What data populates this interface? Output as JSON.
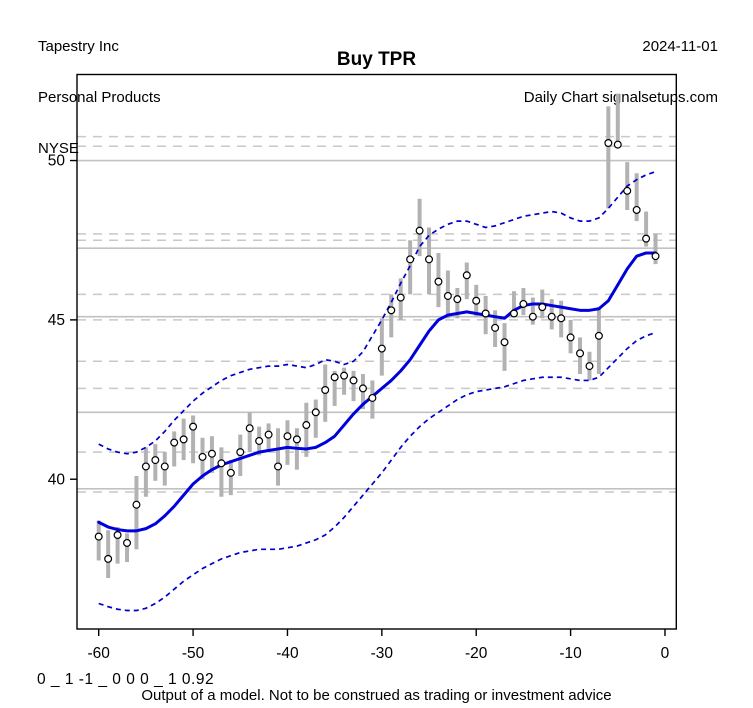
{
  "header": {
    "company": "Tapestry Inc",
    "industry": "Personal Products",
    "exchange": "NYSE",
    "date": "2024-11-01",
    "source": "Daily Chart signalsetups.com"
  },
  "title": "Buy TPR",
  "footer": {
    "model_output": "0 _ 1 -1 _ 0 0 0 _ 1 0.92",
    "disclaimer": "Output of a model. Not to be construed as trading or investment advice"
  },
  "colors": {
    "line_blue": "#0000dd",
    "band_blue": "#0000cc",
    "bar_gray": "#b2b2b2",
    "grid_solid_gray": "#c2c2c2",
    "grid_dashed_gray": "#c8c8c8",
    "marker_fill": "#ffffff",
    "marker_stroke": "#000000",
    "axis_black": "#000000"
  },
  "chart_data": {
    "type": "line",
    "title": "Buy TPR",
    "xlabel": "",
    "ylabel": "",
    "legend": "none",
    "grid": "horizontal support/resistance levels, solid and dashed gray",
    "x_ticks": [
      -60,
      -50,
      -40,
      -30,
      -20,
      -10,
      0
    ],
    "y_ticks": [
      40,
      45,
      50
    ],
    "xlim": [
      -62.3,
      1.2
    ],
    "ylim": [
      35.3,
      52.7
    ],
    "hlines_solid": [
      50.0,
      47.25,
      45.1,
      42.1,
      39.7
    ],
    "hlines_dashed": [
      50.75,
      50.45,
      47.7,
      47.5,
      45.8,
      45.0,
      43.7,
      42.85,
      40.85,
      39.6
    ],
    "x": [
      -60,
      -59,
      -58,
      -57,
      -56,
      -55,
      -54,
      -53,
      -52,
      -51,
      -50,
      -49,
      -48,
      -47,
      -46,
      -45,
      -44,
      -43,
      -42,
      -41,
      -40,
      -39,
      -38,
      -37,
      -36,
      -35,
      -34,
      -33,
      -32,
      -31,
      -30,
      -29,
      -28,
      -27,
      -26,
      -25,
      -24,
      -23,
      -22,
      -21,
      -20,
      -19,
      -18,
      -17,
      -16,
      -15,
      -14,
      -13,
      -12,
      -11,
      -10,
      -9,
      -8,
      -7,
      -6,
      -5,
      -4,
      -3,
      -2,
      -1
    ],
    "series": [
      {
        "name": "close",
        "style": "open-circle-marker",
        "values": [
          38.2,
          37.5,
          38.25,
          38.0,
          39.2,
          40.4,
          40.6,
          40.4,
          41.15,
          41.25,
          41.65,
          40.7,
          40.8,
          40.5,
          40.2,
          40.85,
          41.6,
          41.2,
          41.4,
          40.4,
          41.35,
          41.25,
          41.7,
          42.1,
          42.8,
          43.2,
          43.25,
          43.1,
          42.85,
          42.55,
          44.1,
          45.3,
          45.7,
          46.9,
          47.8,
          46.9,
          46.2,
          45.75,
          45.65,
          46.4,
          45.6,
          45.2,
          44.75,
          44.3,
          45.2,
          45.5,
          45.1,
          45.4,
          45.1,
          45.05,
          44.45,
          43.95,
          43.55,
          44.5,
          50.55,
          50.5,
          49.05,
          48.45,
          47.55,
          47.0
        ]
      },
      {
        "name": "high",
        "style": "gray-range-bar-top",
        "values": [
          38.7,
          38.4,
          38.5,
          38.3,
          40.1,
          41.0,
          41.1,
          40.85,
          41.5,
          41.9,
          42.0,
          41.3,
          41.35,
          41.0,
          40.6,
          41.4,
          42.1,
          41.65,
          41.75,
          41.6,
          41.85,
          41.6,
          42.4,
          42.5,
          43.6,
          43.4,
          43.5,
          43.4,
          43.3,
          43.1,
          45.05,
          45.8,
          46.3,
          47.5,
          48.8,
          47.9,
          47.1,
          46.55,
          46.0,
          46.8,
          46.1,
          45.75,
          45.3,
          44.9,
          45.9,
          46.0,
          45.7,
          45.95,
          45.65,
          45.6,
          45.0,
          44.45,
          44.0,
          45.4,
          51.7,
          52.1,
          49.95,
          49.6,
          48.4,
          47.7
        ]
      },
      {
        "name": "low",
        "style": "gray-range-bar-bottom",
        "values": [
          37.45,
          36.9,
          37.35,
          37.4,
          37.8,
          39.45,
          39.95,
          39.8,
          40.4,
          40.6,
          40.5,
          40.0,
          40.2,
          39.45,
          39.5,
          40.1,
          40.85,
          40.75,
          40.85,
          39.8,
          40.45,
          40.3,
          40.7,
          41.3,
          41.8,
          42.3,
          42.65,
          42.45,
          42.2,
          41.9,
          43.25,
          44.45,
          45.0,
          45.8,
          47.0,
          45.8,
          45.4,
          45.05,
          45.05,
          45.65,
          45.1,
          44.55,
          44.15,
          43.4,
          45.1,
          45.15,
          44.85,
          45.05,
          44.7,
          44.45,
          43.95,
          43.3,
          43.1,
          43.3,
          48.5,
          50.4,
          48.45,
          48.1,
          47.3,
          46.75
        ]
      },
      {
        "name": "moving_average",
        "style": "solid-blue-line",
        "values": [
          38.65,
          38.5,
          38.42,
          38.38,
          38.38,
          38.45,
          38.6,
          38.85,
          39.15,
          39.5,
          39.85,
          40.1,
          40.3,
          40.45,
          40.55,
          40.65,
          40.75,
          40.85,
          40.9,
          40.95,
          41.0,
          40.97,
          40.95,
          41.0,
          41.15,
          41.35,
          41.7,
          42.05,
          42.35,
          42.6,
          42.85,
          43.1,
          43.4,
          43.75,
          44.2,
          44.65,
          45.0,
          45.15,
          45.2,
          45.25,
          45.2,
          45.15,
          45.1,
          45.05,
          45.3,
          45.45,
          45.5,
          45.5,
          45.45,
          45.4,
          45.35,
          45.3,
          45.3,
          45.35,
          45.6,
          46.1,
          46.6,
          47.0,
          47.1,
          47.1
        ]
      },
      {
        "name": "upper_band",
        "style": "dashed-blue-line",
        "values": [
          41.1,
          40.95,
          40.85,
          40.8,
          40.85,
          41.0,
          41.2,
          41.5,
          41.85,
          42.15,
          42.45,
          42.7,
          42.9,
          43.1,
          43.25,
          43.35,
          43.45,
          43.5,
          43.55,
          43.55,
          43.6,
          43.55,
          43.5,
          43.6,
          43.75,
          43.7,
          43.6,
          43.7,
          44.0,
          44.5,
          45.0,
          45.55,
          46.15,
          46.7,
          47.3,
          47.65,
          47.85,
          48.0,
          48.1,
          48.1,
          48.0,
          47.9,
          47.95,
          48.05,
          48.15,
          48.25,
          48.3,
          48.35,
          48.4,
          48.35,
          48.2,
          48.1,
          48.1,
          48.2,
          48.5,
          48.85,
          49.2,
          49.4,
          49.55,
          49.65
        ]
      },
      {
        "name": "lower_band",
        "style": "dashed-blue-line",
        "values": [
          36.1,
          36.0,
          35.92,
          35.88,
          35.88,
          35.95,
          36.1,
          36.3,
          36.55,
          36.8,
          37.0,
          37.2,
          37.35,
          37.5,
          37.6,
          37.7,
          37.75,
          37.8,
          37.8,
          37.8,
          37.85,
          37.9,
          38.0,
          38.1,
          38.25,
          38.5,
          38.8,
          39.15,
          39.5,
          39.85,
          40.2,
          40.6,
          41.0,
          41.35,
          41.65,
          41.9,
          42.1,
          42.3,
          42.5,
          42.65,
          42.75,
          42.8,
          42.85,
          42.9,
          43.0,
          43.1,
          43.15,
          43.2,
          43.2,
          43.2,
          43.15,
          43.1,
          43.1,
          43.2,
          43.5,
          43.8,
          44.1,
          44.35,
          44.5,
          44.6
        ]
      }
    ]
  }
}
